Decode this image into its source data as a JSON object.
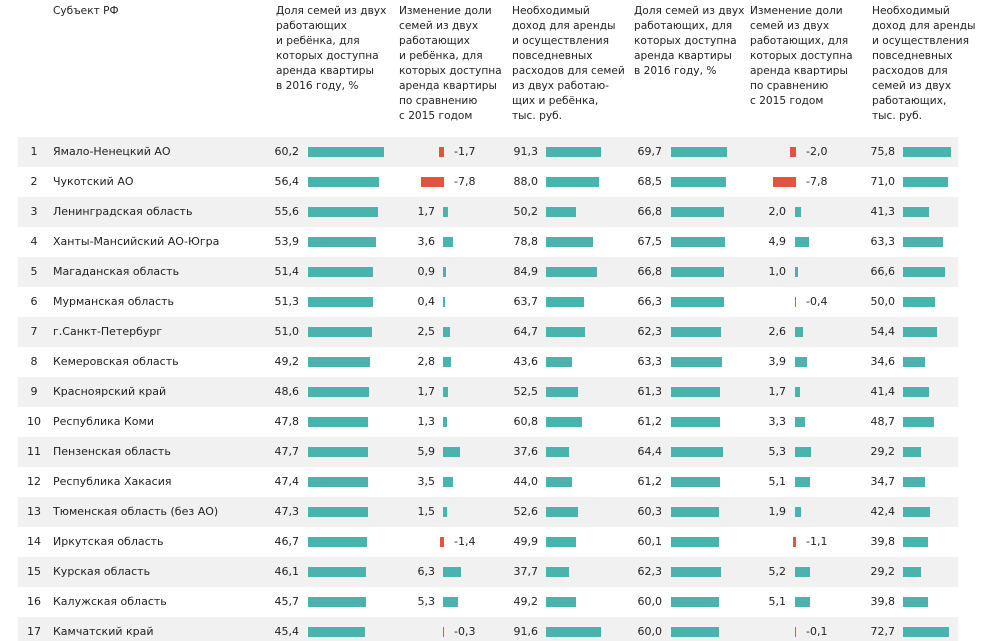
{
  "chart_data": {
    "type": "table",
    "headers": [
      "Субъект РФ",
      "Доля семей из двух\nработающих\nи ребёнка, для\nкоторых доступна\nаренда квартиры\nв 2016 году, %",
      "Изменение доли\nсемей из двух\nработающих\nи ребёнка, для\nкоторых доступна\nаренда квартиры\nпо сравнению\nс 2015 годом",
      "Необходимый\nдоход для аренды\nи осуществления\nповседневных\nрасходов для семей\nиз двух работаю-\nщих и ребёнка,\nтыс. руб.",
      "Доля семей из двух\nработающих, для\nкоторых доступна\nаренда квартиры\nв 2016 году, %",
      "Изменение доли\nсемей из двух\nработающих, для\nкоторых доступна\nаренда квартиры\nпо сравнению\nс 2015 годом",
      "Необходимый\nдоход для аренды\nи осуществления\nповседневных\nрасходов для\nсемей из двух\nработающих,\nтыс. руб."
    ],
    "rows": [
      {
        "rank": "1",
        "region": "Ямало-Ненецкий АО",
        "values": [
          "60,2",
          "-1,7",
          "91,3",
          "69,7",
          "-2,0",
          "75,8"
        ]
      },
      {
        "rank": "2",
        "region": "Чукотский АО",
        "values": [
          "56,4",
          "-7,8",
          "88,0",
          "68,5",
          "-7,8",
          "71,0"
        ]
      },
      {
        "rank": "3",
        "region": "Ленинградская область",
        "values": [
          "55,6",
          "1,7",
          "50,2",
          "66,8",
          "2,0",
          "41,3"
        ]
      },
      {
        "rank": "4",
        "region": "Ханты-Мансийский АО-Югра",
        "values": [
          "53,9",
          "3,6",
          "78,8",
          "67,5",
          "4,9",
          "63,3"
        ]
      },
      {
        "rank": "5",
        "region": "Магаданская область",
        "values": [
          "51,4",
          "0,9",
          "84,9",
          "66,8",
          "1,0",
          "66,6"
        ]
      },
      {
        "rank": "6",
        "region": "Мурманская область",
        "values": [
          "51,3",
          "0,4",
          "63,7",
          "66,3",
          "-0,4",
          "50,0"
        ]
      },
      {
        "rank": "7",
        "region": "г.Санкт-Петербург",
        "values": [
          "51,0",
          "2,5",
          "64,7",
          "62,3",
          "2,6",
          "54,4"
        ]
      },
      {
        "rank": "8",
        "region": "Кемеровская область",
        "values": [
          "49,2",
          "2,8",
          "43,6",
          "63,3",
          "3,9",
          "34,6"
        ]
      },
      {
        "rank": "9",
        "region": "Красноярский край",
        "values": [
          "48,6",
          "1,7",
          "52,5",
          "61,3",
          "1,7",
          "41,4"
        ]
      },
      {
        "rank": "10",
        "region": "Республика Коми",
        "values": [
          "47,8",
          "1,3",
          "60,8",
          "61,2",
          "3,3",
          "48,7"
        ]
      },
      {
        "rank": "11",
        "region": "Пензенская область",
        "values": [
          "47,7",
          "5,9",
          "37,6",
          "64,4",
          "5,3",
          "29,2"
        ]
      },
      {
        "rank": "12",
        "region": "Республика Хакасия",
        "values": [
          "47,4",
          "3,5",
          "44,0",
          "61,2",
          "5,1",
          "34,7"
        ]
      },
      {
        "rank": "13",
        "region": "Тюменская область (без АО)",
        "values": [
          "47,3",
          "1,5",
          "52,6",
          "60,3",
          "1,9",
          "42,4"
        ]
      },
      {
        "rank": "14",
        "region": "Иркутская область",
        "values": [
          "46,7",
          "-1,4",
          "49,9",
          "60,1",
          "-1,1",
          "39,8"
        ]
      },
      {
        "rank": "15",
        "region": "Курская область",
        "values": [
          "46,1",
          "6,3",
          "37,7",
          "62,3",
          "5,2",
          "29,2"
        ]
      },
      {
        "rank": "16",
        "region": "Калужская область",
        "values": [
          "45,7",
          "5,3",
          "49,2",
          "60,0",
          "5,1",
          "39,8"
        ]
      },
      {
        "rank": "17",
        "region": "Камчатский край",
        "values": [
          "45,4",
          "-0,3",
          "91,6",
          "60,0",
          "-0,1",
          "72,7"
        ]
      }
    ],
    "colors": {
      "positive": "#4ab3ae",
      "negative": "#e0553f",
      "row_stripe": "#f1f1f1"
    }
  }
}
